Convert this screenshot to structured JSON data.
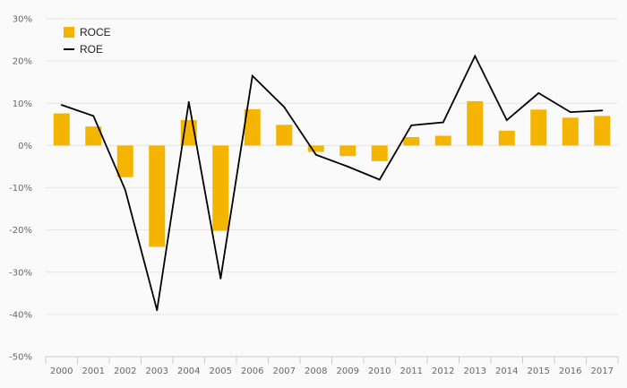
{
  "chart_data": {
    "type": "bar",
    "categories": [
      "2000",
      "2001",
      "2002",
      "2003",
      "2004",
      "2005",
      "2006",
      "2007",
      "2008",
      "2009",
      "2010",
      "2011",
      "2012",
      "2013",
      "2014",
      "2015",
      "2016",
      "2017"
    ],
    "series": [
      {
        "name": "ROCE",
        "type": "bar",
        "color": "#F5B400",
        "values": [
          7.6,
          4.5,
          -7.5,
          -24.0,
          6.0,
          -20.2,
          8.6,
          4.9,
          -1.5,
          -2.5,
          -3.7,
          2.0,
          2.3,
          10.5,
          3.5,
          8.5,
          6.6,
          7.0
        ]
      },
      {
        "name": "ROE",
        "type": "line",
        "color": "#000000",
        "values": [
          9.6,
          7.0,
          -10.5,
          -39.0,
          10.3,
          -31.5,
          16.5,
          9.1,
          -2.2,
          -5.0,
          -8.1,
          4.8,
          5.5,
          21.2,
          6.0,
          12.4,
          7.9,
          8.3
        ]
      }
    ],
    "y_ticks": [
      "30%",
      "20%",
      "10%",
      "0%",
      "-10%",
      "-20%",
      "-30%",
      "-40%",
      "-50%"
    ],
    "ylim": [
      -50,
      30
    ],
    "grid": true,
    "legend": "top-left"
  }
}
